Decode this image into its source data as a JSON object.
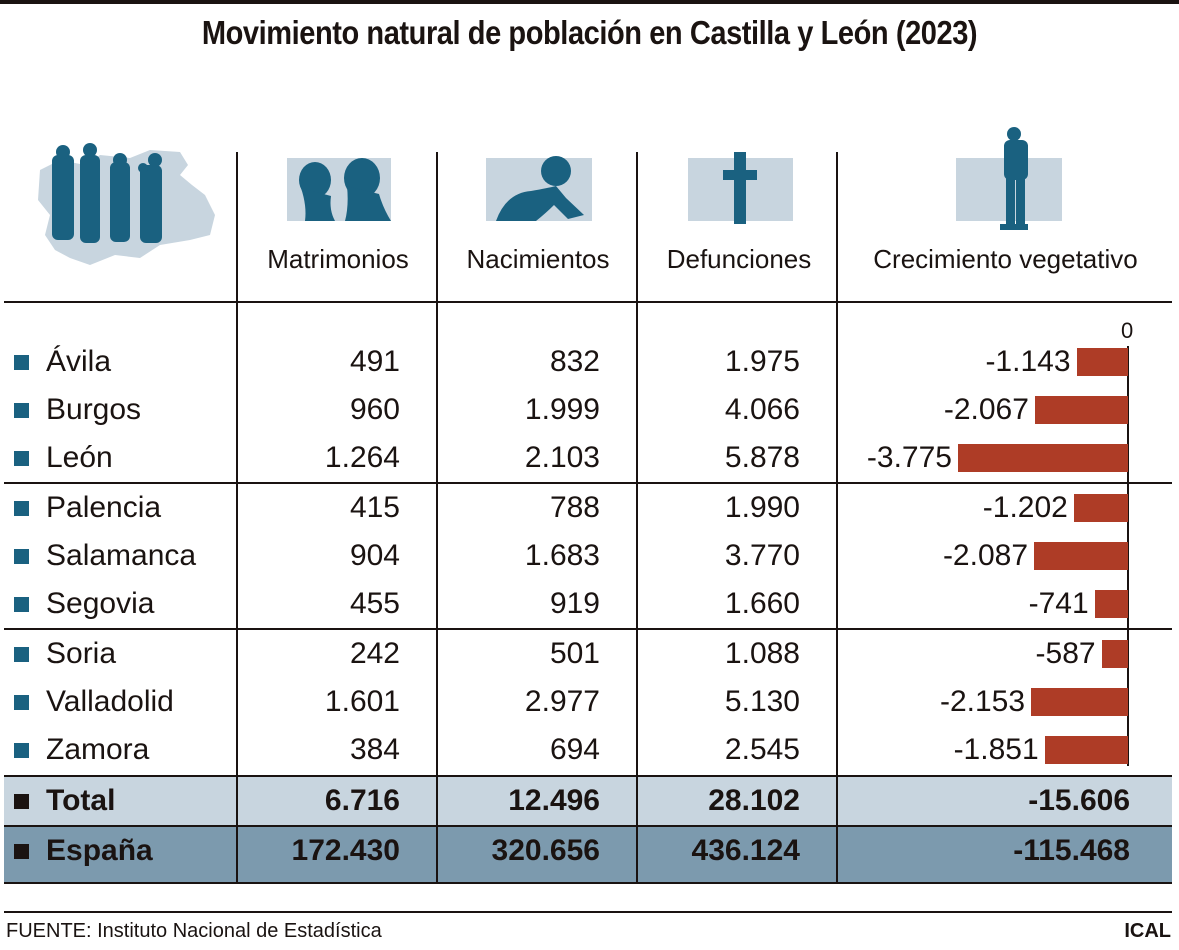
{
  "title": "Movimiento natural de población en Castilla y León (2023)",
  "icons": {
    "region": "castilla-leon-map-people-icon",
    "col1": "couple-faces-icon",
    "col2": "crawling-baby-icon",
    "col3": "cross-icon",
    "col4": "family-silhouette-icon"
  },
  "colors": {
    "accent_blue": "#1a6180",
    "icon_bg": "#c8d5df",
    "bar_red": "#ae3c26",
    "total_bg": "#c8d5df",
    "spain_bg": "#7c9aae"
  },
  "columns": [
    "Matrimonios",
    "Nacimientos",
    "Defunciones",
    "Crecimiento vegetativo"
  ],
  "rows": [
    {
      "name": "Ávila",
      "matrimonios": "491",
      "nacimientos": "832",
      "defunciones": "1.975",
      "crecimiento": "-1.143"
    },
    {
      "name": "Burgos",
      "matrimonios": "960",
      "nacimientos": "1.999",
      "defunciones": "4.066",
      "crecimiento": "-2.067"
    },
    {
      "name": "León",
      "matrimonios": "1.264",
      "nacimientos": "2.103",
      "defunciones": "5.878",
      "crecimiento": "-3.775"
    },
    {
      "name": "Palencia",
      "matrimonios": "415",
      "nacimientos": "788",
      "defunciones": "1.990",
      "crecimiento": "-1.202"
    },
    {
      "name": "Salamanca",
      "matrimonios": "904",
      "nacimientos": "1.683",
      "defunciones": "3.770",
      "crecimiento": "-2.087"
    },
    {
      "name": "Segovia",
      "matrimonios": "455",
      "nacimientos": "919",
      "defunciones": "1.660",
      "crecimiento": "-741"
    },
    {
      "name": "Soria",
      "matrimonios": "242",
      "nacimientos": "501",
      "defunciones": "1.088",
      "crecimiento": "-587"
    },
    {
      "name": "Valladolid",
      "matrimonios": "1.601",
      "nacimientos": "2.977",
      "defunciones": "5.130",
      "crecimiento": "-2.153"
    },
    {
      "name": "Zamora",
      "matrimonios": "384",
      "nacimientos": "694",
      "defunciones": "2.545",
      "crecimiento": "-1.851"
    }
  ],
  "totals": [
    {
      "name": "Total",
      "matrimonios": "6.716",
      "nacimientos": "12.496",
      "defunciones": "28.102",
      "crecimiento": "-15.606"
    },
    {
      "name": "España",
      "matrimonios": "172.430",
      "nacimientos": "320.656",
      "defunciones": "436.124",
      "crecimiento": "-115.468"
    }
  ],
  "footer": {
    "source": "FUENTE: Instituto Nacional de Estadística",
    "agency": "ICAL"
  },
  "chart_data": {
    "type": "bar",
    "title": "Crecimiento vegetativo",
    "orientation": "horizontal",
    "categories": [
      "Ávila",
      "Burgos",
      "León",
      "Palencia",
      "Salamanca",
      "Segovia",
      "Soria",
      "Valladolid",
      "Zamora"
    ],
    "values": [
      -1143,
      -2067,
      -3775,
      -1202,
      -2087,
      -741,
      -587,
      -2153,
      -1851
    ],
    "axis_label_zero": "0",
    "xlim": [
      -3775,
      0
    ]
  }
}
